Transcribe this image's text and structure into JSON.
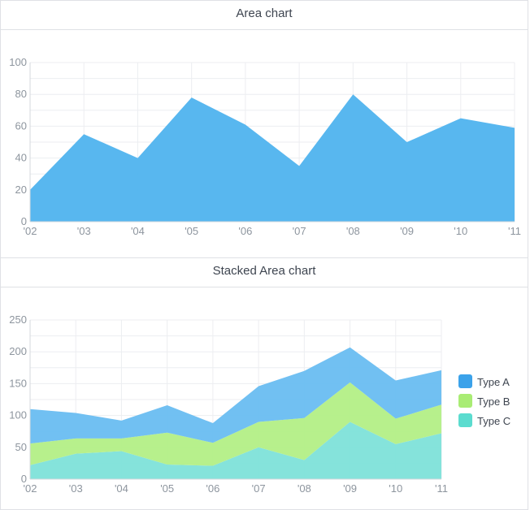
{
  "chart_data": [
    {
      "type": "area",
      "title": "Area chart",
      "categories": [
        "'02",
        "'03",
        "'04",
        "'05",
        "'06",
        "'07",
        "'08",
        "'09",
        "'10",
        "'11"
      ],
      "series": [
        {
          "name": "",
          "color": "#4fb3ee",
          "values": [
            20,
            55,
            40,
            78,
            61,
            35,
            80,
            50,
            65,
            59
          ]
        }
      ],
      "ylim": [
        0,
        100
      ],
      "yticks": [
        0,
        20,
        40,
        60,
        80,
        100
      ],
      "grid": true
    },
    {
      "type": "area",
      "stacked": true,
      "title": "Stacked Area chart",
      "categories": [
        "'02",
        "'03",
        "'04",
        "'05",
        "'06",
        "'07",
        "'08",
        "'09",
        "'10",
        "'11"
      ],
      "series": [
        {
          "name": "Type C",
          "color": "#7ee2d9",
          "values": [
            22,
            40,
            44,
            23,
            21,
            50,
            30,
            90,
            55,
            72
          ]
        },
        {
          "name": "Type B",
          "color": "#b3ef86",
          "values": [
            34,
            24,
            20,
            50,
            36,
            40,
            66,
            62,
            40,
            45
          ]
        },
        {
          "name": "Type A",
          "color": "#69bdf1",
          "values": [
            54,
            40,
            28,
            43,
            31,
            56,
            74,
            55,
            60,
            54
          ]
        }
      ],
      "legend": [
        {
          "name": "Type A",
          "color": "#3ba2ea"
        },
        {
          "name": "Type B",
          "color": "#a9ec74"
        },
        {
          "name": "Type C",
          "color": "#5bdccf"
        }
      ],
      "legend_position": "right",
      "ylim": [
        0,
        250
      ],
      "yticks": [
        0,
        50,
        100,
        150,
        200,
        250
      ],
      "grid": true
    }
  ]
}
